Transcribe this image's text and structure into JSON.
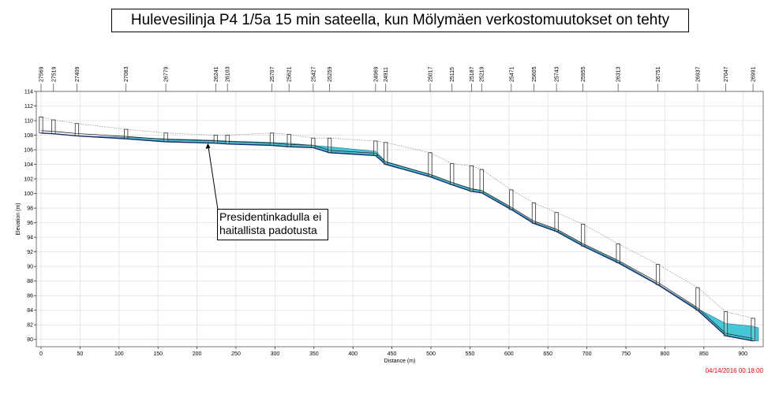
{
  "title": "Hulevesilinja P4 1/5a 15 min sateella, kun Mölymäen verkostomuutokset on tehty",
  "timestamp": "04/14/2016 00:18:00",
  "annotation": {
    "line1": "Presidentinkadulla ei",
    "line2": "haitallista padotusta",
    "target_distance": 214,
    "target_elevation": 107.0
  },
  "colors": {
    "water_fill": "#3ec5d3",
    "invert_line": "#1a2a6b",
    "ground_line": "#888888",
    "grid": "#e6e6e6",
    "timestamp": "#e0000a"
  },
  "chart_data": {
    "type": "area",
    "title": "Hulevesilinja P4 1/5a 15 min sateella, kun Mölymäen verkostomuutokset on tehty",
    "xlabel": "Distance (m)",
    "ylabel": "Elevation (m)",
    "xlim": [
      0,
      920
    ],
    "ylim": [
      79,
      114
    ],
    "xticks": [
      0,
      50,
      100,
      150,
      200,
      250,
      300,
      350,
      400,
      450,
      500,
      550,
      600,
      650,
      700,
      750,
      800,
      850,
      900
    ],
    "yticks": [
      80,
      82,
      84,
      86,
      88,
      90,
      92,
      94,
      96,
      98,
      100,
      102,
      104,
      106,
      108,
      110,
      112,
      114
    ],
    "grid": true,
    "nodes": [
      {
        "label": "27569",
        "x": 0,
        "invert": 108.3,
        "top": 110.5
      },
      {
        "label": "27519",
        "x": 16,
        "invert": 108.2,
        "top": 110.1
      },
      {
        "label": "27409",
        "x": 46,
        "invert": 107.9,
        "top": 109.6
      },
      {
        "label": "27083",
        "x": 109,
        "invert": 107.5,
        "top": 108.8
      },
      {
        "label": "26779",
        "x": 160,
        "invert": 107.1,
        "top": 108.3
      },
      {
        "label": "26241",
        "x": 224,
        "invert": 106.9,
        "top": 108.0
      },
      {
        "label": "26103",
        "x": 239,
        "invert": 106.8,
        "top": 108.0
      },
      {
        "label": "25707",
        "x": 296,
        "invert": 106.6,
        "top": 108.3
      },
      {
        "label": "25621",
        "x": 318,
        "invert": 106.4,
        "top": 108.1
      },
      {
        "label": "25427",
        "x": 349,
        "invert": 106.3,
        "top": 107.6
      },
      {
        "label": "25259",
        "x": 370,
        "invert": 105.6,
        "top": 107.6
      },
      {
        "label": "24969",
        "x": 429,
        "invert": 105.2,
        "top": 107.2
      },
      {
        "label": "24911",
        "x": 442,
        "invert": 104.0,
        "top": 107.0
      },
      {
        "label": "25017",
        "x": 499,
        "invert": 102.3,
        "top": 105.6
      },
      {
        "label": "25115",
        "x": 527,
        "invert": 101.2,
        "top": 104.1
      },
      {
        "label": "25187",
        "x": 552,
        "invert": 100.3,
        "top": 103.8
      },
      {
        "label": "25219",
        "x": 565,
        "invert": 100.1,
        "top": 103.3
      },
      {
        "label": "25471",
        "x": 603,
        "invert": 97.8,
        "top": 100.5
      },
      {
        "label": "25605",
        "x": 632,
        "invert": 95.9,
        "top": 98.7
      },
      {
        "label": "25743",
        "x": 661,
        "invert": 94.8,
        "top": 97.4
      },
      {
        "label": "25955",
        "x": 695,
        "invert": 92.8,
        "top": 95.8
      },
      {
        "label": "26313",
        "x": 740,
        "invert": 90.5,
        "top": 93.1
      },
      {
        "label": "26751",
        "x": 791,
        "invert": 87.5,
        "top": 90.3
      },
      {
        "label": "26937",
        "x": 842,
        "invert": 84.0,
        "top": 87.1
      },
      {
        "label": "27047",
        "x": 878,
        "invert": 80.5,
        "top": 83.8
      },
      {
        "label": "26991",
        "x": 913,
        "invert": 79.8,
        "top": 82.9
      }
    ],
    "water_level": [
      {
        "x": 0,
        "y": 108.3
      },
      {
        "x": 16,
        "y": 108.2
      },
      {
        "x": 46,
        "y": 107.9
      },
      {
        "x": 109,
        "y": 107.7
      },
      {
        "x": 160,
        "y": 107.5
      },
      {
        "x": 224,
        "y": 107.3
      },
      {
        "x": 239,
        "y": 107.2
      },
      {
        "x": 296,
        "y": 107.0
      },
      {
        "x": 318,
        "y": 106.9
      },
      {
        "x": 349,
        "y": 106.6
      },
      {
        "x": 370,
        "y": 106.4
      },
      {
        "x": 429,
        "y": 105.8
      },
      {
        "x": 442,
        "y": 104.4
      },
      {
        "x": 499,
        "y": 102.6
      },
      {
        "x": 527,
        "y": 101.5
      },
      {
        "x": 552,
        "y": 100.7
      },
      {
        "x": 565,
        "y": 100.4
      },
      {
        "x": 603,
        "y": 98.0
      },
      {
        "x": 632,
        "y": 96.1
      },
      {
        "x": 661,
        "y": 95.0
      },
      {
        "x": 695,
        "y": 93.0
      },
      {
        "x": 740,
        "y": 90.7
      },
      {
        "x": 791,
        "y": 87.6
      },
      {
        "x": 842,
        "y": 84.2
      },
      {
        "x": 878,
        "y": 82.2
      },
      {
        "x": 913,
        "y": 81.8
      },
      {
        "x": 920,
        "y": 81.6
      }
    ]
  }
}
